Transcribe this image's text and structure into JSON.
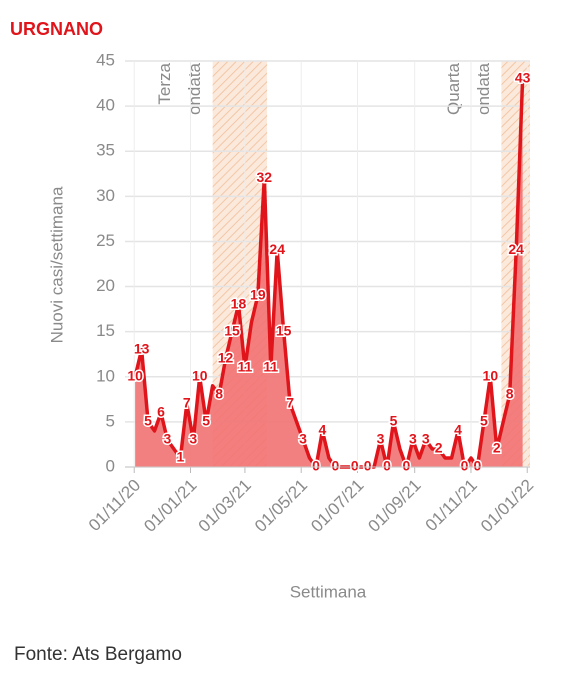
{
  "chart_data": {
    "type": "area-line",
    "title": "URGNANO",
    "y_label": "Nuovi casi/settimana",
    "x_label": "Settimana",
    "source": "Fonte: Ats Bergamo",
    "color": "#e0151b",
    "fill_color": "#f27272",
    "x": [
      "2020-11-02",
      "2020-11-09",
      "2020-11-16",
      "2020-11-23",
      "2020-11-30",
      "2020-12-07",
      "2020-12-14",
      "2020-12-21",
      "2020-12-28",
      "2021-01-04",
      "2021-01-11",
      "2021-01-18",
      "2021-01-25",
      "2021-02-01",
      "2021-02-08",
      "2021-02-15",
      "2021-02-22",
      "2021-03-01",
      "2021-03-08",
      "2021-03-15",
      "2021-03-22",
      "2021-03-29",
      "2021-04-05",
      "2021-04-12",
      "2021-04-19",
      "2021-04-26",
      "2021-05-03",
      "2021-05-10",
      "2021-05-17",
      "2021-05-24",
      "2021-05-31",
      "2021-06-07",
      "2021-06-14",
      "2021-06-21",
      "2021-06-28",
      "2021-07-05",
      "2021-07-12",
      "2021-07-19",
      "2021-07-26",
      "2021-08-02",
      "2021-08-09",
      "2021-08-16",
      "2021-08-23",
      "2021-08-30",
      "2021-09-06",
      "2021-09-13",
      "2021-09-20",
      "2021-09-27",
      "2021-10-04",
      "2021-10-11",
      "2021-10-18",
      "2021-10-25",
      "2021-11-01",
      "2021-11-08",
      "2021-11-15",
      "2021-11-22",
      "2021-11-29",
      "2021-12-06",
      "2021-12-13",
      "2021-12-20",
      "2021-12-27"
    ],
    "values": [
      10,
      13,
      5,
      4,
      6,
      3,
      2,
      1,
      7,
      3,
      10,
      5,
      9,
      8,
      12,
      15,
      18,
      11,
      16,
      19,
      32,
      11,
      24,
      15,
      7,
      5,
      3,
      1,
      0,
      4,
      1,
      0,
      0,
      0,
      0,
      0,
      0,
      0,
      3,
      0,
      5,
      2,
      0,
      3,
      1,
      3,
      2,
      2,
      1,
      1,
      4,
      0,
      1,
      0,
      5,
      10,
      2,
      5,
      8,
      24,
      43
    ],
    "value_labels": [
      "10",
      "13",
      "5",
      null,
      "6",
      "3",
      null,
      "1",
      "7",
      "3",
      "10",
      "5",
      null,
      "8",
      "12",
      "15",
      "18",
      "11",
      null,
      "19",
      "32",
      "11",
      "24",
      "15",
      "7",
      null,
      "3",
      null,
      "0",
      "4",
      null,
      "0",
      null,
      null,
      "0",
      null,
      "0",
      null,
      "3",
      "0",
      "5",
      null,
      "0",
      "3",
      null,
      "3",
      null,
      "2",
      null,
      null,
      "4",
      "0",
      null,
      "0",
      "5",
      "10",
      "2",
      null,
      "8",
      "24",
      "43"
    ],
    "xlim": [
      "2020-10-22",
      "2022-01-04"
    ],
    "xticks": [
      {
        "value": "2020-11-01",
        "label": "01/11/20"
      },
      {
        "value": "2021-01-01",
        "label": "01/01/21"
      },
      {
        "value": "2021-03-01",
        "label": "01/03/21"
      },
      {
        "value": "2021-05-01",
        "label": "01/05/21"
      },
      {
        "value": "2021-07-01",
        "label": "01/07/21"
      },
      {
        "value": "2021-09-01",
        "label": "01/09/21"
      },
      {
        "value": "2021-11-01",
        "label": "01/11/21"
      },
      {
        "value": "2022-01-01",
        "label": "01/01/22"
      }
    ],
    "ylim": [
      0,
      45
    ],
    "yticks": [
      0,
      5,
      10,
      15,
      20,
      25,
      30,
      35,
      40,
      45
    ],
    "grid": true,
    "bands": [
      {
        "from": "2021-01-25",
        "to": "2021-03-25",
        "label": [
          "Terza",
          "ondata"
        ]
      },
      {
        "from": "2021-12-04",
        "to": "2022-01-04",
        "label": [
          "Quarta",
          "ondata"
        ]
      }
    ]
  }
}
